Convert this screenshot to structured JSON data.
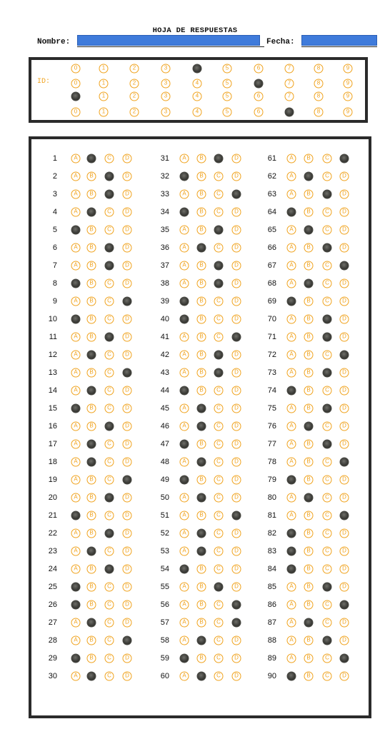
{
  "header": {
    "title": "HOJA DE RESPUESTAS",
    "name_label": "Nombre:",
    "date_label": "Fecha:"
  },
  "id_section": {
    "label": "ID:",
    "digits": [
      "0",
      "1",
      "2",
      "3",
      "4",
      "5",
      "6",
      "7",
      "8",
      "9"
    ],
    "filled": [
      4,
      6,
      0,
      7
    ]
  },
  "answers": {
    "options": [
      "A",
      "B",
      "C",
      "D"
    ],
    "columns": [
      {
        "start": 1,
        "selected": [
          "B",
          "C",
          "C",
          "B",
          "A",
          "C",
          "C",
          "A",
          "D",
          "A",
          "C",
          "B",
          "D",
          "B",
          "A",
          "C",
          "B",
          "B",
          "D",
          "C",
          "A",
          "C",
          "B",
          "C",
          "A",
          "A",
          "B",
          "D",
          "A",
          "B"
        ]
      },
      {
        "start": 31,
        "selected": [
          "C",
          "A",
          "D",
          "A",
          "C",
          "B",
          "C",
          "C",
          "A",
          "A",
          "D",
          "C",
          "C",
          "A",
          "B",
          "B",
          "A",
          "B",
          "A",
          "B",
          "D",
          "B",
          "B",
          "A",
          "C",
          "D",
          "D",
          "B",
          "A",
          "B"
        ]
      },
      {
        "start": 61,
        "selected": [
          "D",
          "B",
          "C",
          "A",
          "B",
          "C",
          "D",
          "B",
          "A",
          "C",
          "C",
          "D",
          "C",
          "A",
          "C",
          "B",
          "C",
          "D",
          "A",
          "B",
          "D",
          "A",
          "A",
          "A",
          "C",
          "D",
          "B",
          "C",
          "D",
          "A"
        ]
      }
    ]
  }
}
